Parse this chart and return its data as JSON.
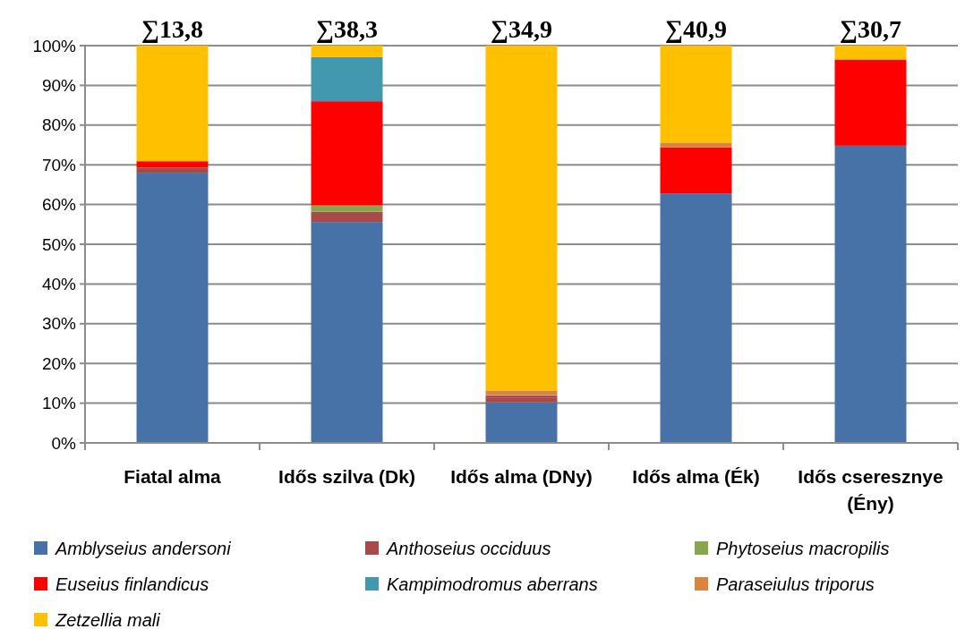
{
  "chart_data": {
    "type": "bar",
    "stacked": true,
    "categories": [
      "Fiatal alma",
      "Idős szilva (Dk)",
      "Idős alma (DNy)",
      "Idős alma (Ék)",
      "Idős cseresznye (Ény)"
    ],
    "series": [
      {
        "name": "Amblyseius andersoni",
        "color": "#4672a8",
        "values": [
          68,
          55.6,
          10.2,
          62.8,
          74.8
        ]
      },
      {
        "name": "Anthoseius occiduus",
        "color": "#a84a47",
        "values": [
          1.3,
          2.6,
          1.2,
          null,
          null
        ]
      },
      {
        "name": "Phytoseius macropilis",
        "color": "#89a54e",
        "values": [
          null,
          1.6,
          null,
          null,
          null
        ]
      },
      {
        "name": "Euseius finlandicus",
        "color": "#ff0000",
        "values": [
          1.6,
          26.2,
          0.3,
          11.6,
          21.7
        ]
      },
      {
        "name": "Kampimodromus aberrans",
        "color": "#4198af",
        "values": [
          null,
          11.1,
          0.3,
          null,
          null
        ]
      },
      {
        "name": "Paraseiulus triporus",
        "color": "#db843d",
        "values": [
          null,
          null,
          1.2,
          1.2,
          null
        ]
      },
      {
        "name": "Zetzellia mali",
        "color": "#ffc000",
        "values": [
          29.1,
          2.9,
          86.8,
          24.4,
          3.5
        ]
      }
    ],
    "annotations": [
      {
        "text": "∑13,8",
        "x": "Fiatal alma",
        "y": 100
      },
      {
        "text": "∑38,3",
        "x": "Idős szilva (Dk)",
        "y": 100
      },
      {
        "text": "∑34,9",
        "x": "Idős alma (DNy)",
        "y": 100
      },
      {
        "text": "∑40,9",
        "x": "Idős alma (Ék)",
        "y": 100
      },
      {
        "text": "∑30,7",
        "x": "Idős cseresznye (Ény)",
        "y": 100
      }
    ],
    "ylim": [
      0,
      100
    ],
    "yticks": [
      {
        "value": 0,
        "label": "0%"
      },
      {
        "value": 10,
        "label": "10%"
      },
      {
        "value": 20,
        "label": "20%"
      },
      {
        "value": 30,
        "label": "30%"
      },
      {
        "value": 40,
        "label": "40%"
      },
      {
        "value": 50,
        "label": "50%"
      },
      {
        "value": 60,
        "label": "60%"
      },
      {
        "value": 70,
        "label": "70%"
      },
      {
        "value": 80,
        "label": "80%"
      },
      {
        "value": 90,
        "label": "90%"
      },
      {
        "value": 100,
        "label": "100%"
      }
    ],
    "grid": "y",
    "legend": "bottom"
  }
}
